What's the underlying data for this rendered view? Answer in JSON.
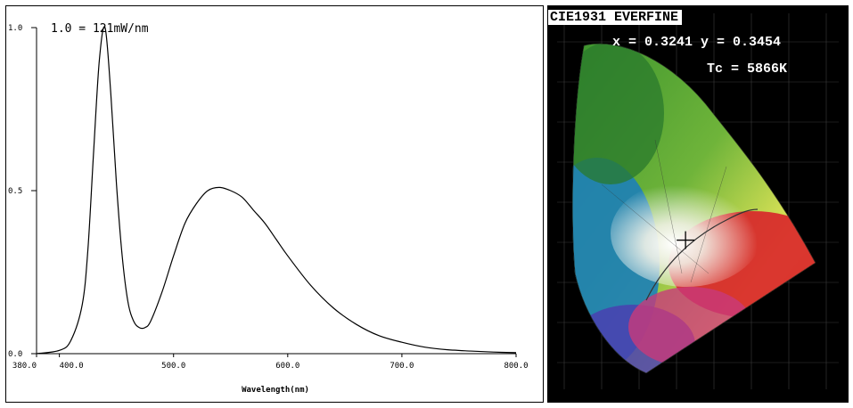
{
  "chart_data": [
    {
      "type": "line",
      "annotation": "1.0 = 121mW/nm",
      "xlabel": "Wavelength(nm)",
      "xlim": [
        380,
        800
      ],
      "ylim": [
        0,
        1.0
      ],
      "x_tick_labels": [
        "380.0",
        "400.0",
        "500.0",
        "600.0",
        "700.0",
        "800.0"
      ],
      "x_ticks": [
        380,
        400,
        500,
        600,
        700,
        800
      ],
      "y_tick_labels": [
        "0.0",
        "0.5",
        "1.0"
      ],
      "y_ticks": [
        0,
        0.5,
        1.0
      ],
      "series": [
        {
          "x": [
            380,
            400,
            410,
            420,
            425,
            430,
            435,
            440,
            445,
            450,
            455,
            460,
            465,
            470,
            475,
            480,
            490,
            500,
            510,
            520,
            530,
            540,
            550,
            560,
            570,
            580,
            590,
            600,
            620,
            640,
            660,
            680,
            700,
            720,
            740,
            760,
            780,
            800
          ],
          "values": [
            0.0,
            0.01,
            0.04,
            0.15,
            0.32,
            0.62,
            0.9,
            1.0,
            0.8,
            0.52,
            0.3,
            0.16,
            0.1,
            0.08,
            0.08,
            0.1,
            0.19,
            0.3,
            0.4,
            0.46,
            0.5,
            0.51,
            0.5,
            0.48,
            0.44,
            0.4,
            0.35,
            0.3,
            0.21,
            0.14,
            0.09,
            0.055,
            0.035,
            0.02,
            0.012,
            0.008,
            0.005,
            0.003
          ]
        }
      ]
    },
    {
      "type": "scatter",
      "title": "CIE1931 EVERFINE",
      "readout_xy": "x = 0.3241 y = 0.3454",
      "readout_tc": "Tc = 5866K",
      "point": {
        "x": 0.3241,
        "y": 0.3454
      }
    }
  ]
}
